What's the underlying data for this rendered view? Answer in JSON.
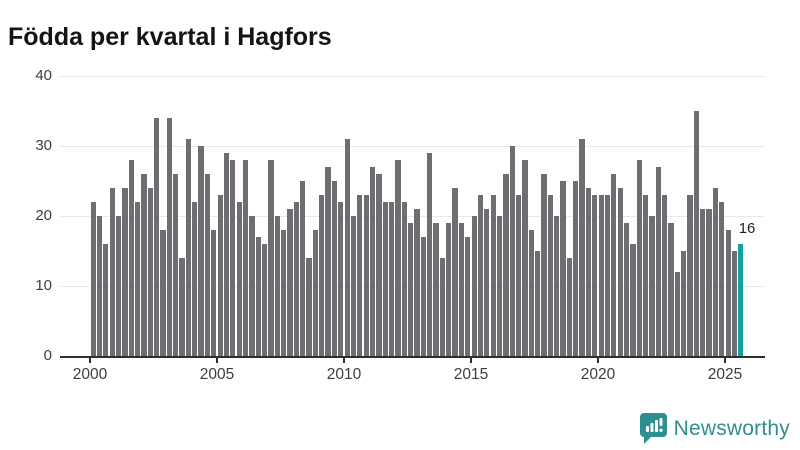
{
  "title": "Födda per kvartal i Hagfors",
  "annotation": {
    "text": "16"
  },
  "footer": {
    "brand": "Newsworthy"
  },
  "colors": {
    "bar": "#6d6e72",
    "highlight": "#14a0a0",
    "grid": "#e9e9e9",
    "axis": "#2f2f2f",
    "brand": "#2e8f8f"
  },
  "chart_data": {
    "type": "bar",
    "title": "Födda per kvartal i Hagfors",
    "xlabel": "",
    "ylabel": "",
    "ylim": [
      0,
      40
    ],
    "y_ticks": [
      0,
      10,
      20,
      30,
      40
    ],
    "x_tick_labels": [
      "2000",
      "2005",
      "2010",
      "2015",
      "2020",
      "2025"
    ],
    "grid": "horizontal",
    "period_start": "2000 Q1",
    "period_end": "2025 Q3",
    "values": [
      22,
      20,
      16,
      24,
      20,
      24,
      28,
      22,
      26,
      24,
      34,
      18,
      34,
      26,
      14,
      31,
      22,
      30,
      26,
      18,
      23,
      29,
      28,
      22,
      28,
      20,
      17,
      16,
      28,
      20,
      18,
      21,
      22,
      25,
      14,
      18,
      23,
      27,
      25,
      22,
      31,
      20,
      23,
      23,
      27,
      26,
      22,
      22,
      28,
      22,
      19,
      21,
      17,
      29,
      19,
      14,
      19,
      24,
      19,
      17,
      20,
      23,
      21,
      23,
      20,
      26,
      30,
      23,
      28,
      18,
      15,
      26,
      23,
      20,
      25,
      14,
      25,
      31,
      24,
      23,
      23,
      23,
      26,
      24,
      19,
      16,
      28,
      23,
      20,
      27,
      23,
      19,
      12,
      15,
      23,
      35,
      21,
      21,
      24,
      22,
      18,
      15,
      16
    ],
    "highlight_index": 102,
    "highlight_label": "16"
  }
}
